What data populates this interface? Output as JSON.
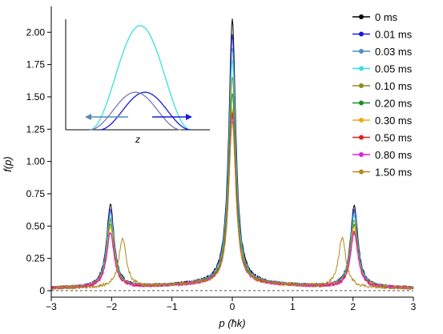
{
  "chart_data": {
    "type": "line",
    "xlabel": "p (ħk)",
    "ylabel": "f(p)",
    "xlim": [
      -3,
      3
    ],
    "ylim": [
      -0.05,
      2.2
    ],
    "xticks": [
      "−3",
      "−2",
      "−1",
      "0",
      "1",
      "2",
      "3"
    ],
    "xtick_values": [
      -3,
      -2,
      -1,
      0,
      1,
      2,
      3
    ],
    "yticks": [
      "0",
      "0.25",
      "0.50",
      "0.75",
      "1.00",
      "1.25",
      "1.50",
      "1.75",
      "2.00"
    ],
    "ytick_values": [
      0,
      0.25,
      0.5,
      0.75,
      1.0,
      1.25,
      1.5,
      1.75,
      2.0
    ],
    "baseline": 0,
    "grid": false,
    "legend_position": "top-right",
    "series": [
      {
        "name": "0 ms",
        "color": "#000000",
        "central_peak": 2.09,
        "side_peak": 0.64,
        "side_peak_x": 2.02,
        "noise": 0.025
      },
      {
        "name": "0.01 ms",
        "color": "#1a1ad6",
        "central_peak": 1.97,
        "side_peak": 0.61,
        "side_peak_x": 2.02,
        "noise": 0.025
      },
      {
        "name": "0.03 ms",
        "color": "#4f8fb8",
        "central_peak": 1.88,
        "side_peak": 0.58,
        "side_peak_x": 2.02,
        "noise": 0.025
      },
      {
        "name": "0.05 ms",
        "color": "#36e0e0",
        "central_peak": 1.78,
        "side_peak": 0.55,
        "side_peak_x": 2.02,
        "noise": 0.025
      },
      {
        "name": "0.10 ms",
        "color": "#8c8c1a",
        "central_peak": 1.66,
        "side_peak": 0.52,
        "side_peak_x": 2.02,
        "noise": 0.025
      },
      {
        "name": "0.20 ms",
        "color": "#1f8c2a",
        "central_peak": 1.53,
        "side_peak": 0.49,
        "side_peak_x": 2.02,
        "noise": 0.025
      },
      {
        "name": "0.30 ms",
        "color": "#f0a818",
        "central_peak": 1.4,
        "side_peak": 0.47,
        "side_peak_x": 2.02,
        "noise": 0.025
      },
      {
        "name": "0.50 ms",
        "color": "#e02020",
        "central_peak": 1.37,
        "side_peak": 0.43,
        "side_peak_x": 2.02,
        "noise": 0.025
      },
      {
        "name": "0.80 ms",
        "color": "#e020e0",
        "central_peak": 1.34,
        "side_peak": 0.42,
        "side_peak_x": 2.02,
        "noise": 0.025
      },
      {
        "name": "1.50 ms",
        "color": "#b08a1a",
        "central_peak": 1.31,
        "side_peak": 0.38,
        "side_peak_x": 1.82,
        "noise": 0.025
      }
    ],
    "inset": {
      "xlabel": "z",
      "curves": [
        {
          "color": "#36e0e0",
          "peak": 1.0
        },
        {
          "color": "#1a1ad6",
          "peak": 0.36
        },
        {
          "color": "#7a7ab0",
          "peak": 0.36
        }
      ],
      "arrows": [
        {
          "direction": "left",
          "color": "#4f8fb8"
        },
        {
          "direction": "right",
          "color": "#1a1ad6"
        }
      ]
    }
  }
}
